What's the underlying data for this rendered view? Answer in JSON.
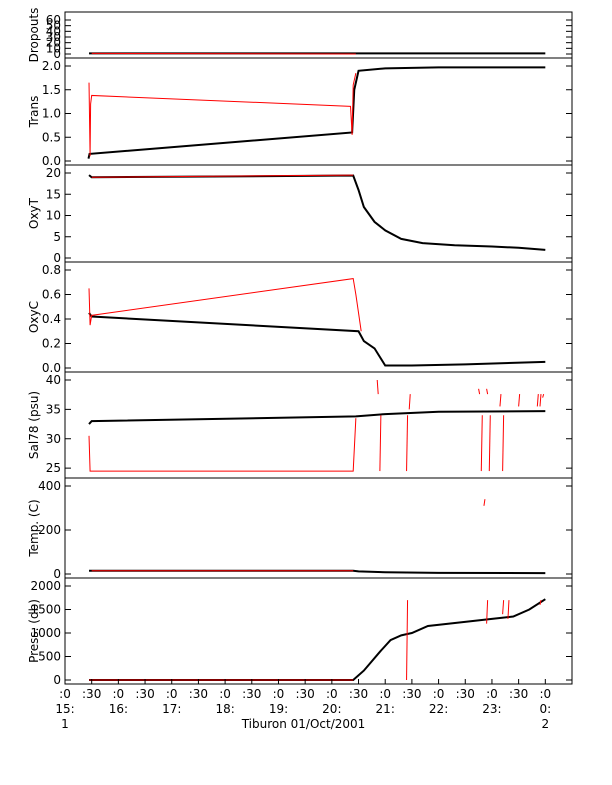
{
  "chart_data": {
    "type": "line",
    "title": "",
    "xlabel": "Tiburon 01/Oct/2001",
    "x_domain_hours": [
      15.0,
      24.5
    ],
    "x_tick_labels": [
      ":0",
      ":30",
      ":0",
      ":30",
      ":0",
      ":30",
      ":0",
      ":30",
      ":0",
      ":30",
      ":0",
      ":30",
      ":0",
      ":30",
      ":0",
      ":30",
      ":0",
      ":30",
      ":0"
    ],
    "x_tick_hours": [
      "15:",
      "16:",
      "17:",
      "18:",
      "19:",
      "20:",
      "21:",
      "22:",
      "23:",
      "0:"
    ],
    "x_tick_days": [
      "1",
      "2"
    ],
    "colors": {
      "qc": "#ff0000",
      "data": "#000000",
      "axis": "#000000"
    },
    "panels": [
      {
        "ylabel": "Dropouts",
        "ylim": [
          0,
          60
        ],
        "yticks": [
          "60",
          "50",
          "40",
          "30",
          "20",
          "10",
          "0"
        ],
        "ytick_values": [
          60,
          50,
          40,
          30,
          20,
          10,
          0
        ],
        "red": [
          [
            15.5,
            1
          ],
          [
            20.45,
            0
          ]
        ],
        "black": [
          [
            15.45,
            1
          ],
          [
            15.5,
            1
          ],
          [
            20.45,
            1
          ],
          [
            24.0,
            1
          ]
        ]
      },
      {
        "ylabel": "Trans",
        "ylim": [
          0,
          2
        ],
        "yticks": [
          "2.0",
          "1.5",
          "1.0",
          "0.5",
          "0.0"
        ],
        "ytick_values": [
          2.0,
          1.5,
          1.0,
          0.5,
          0.0
        ],
        "red": [
          [
            15.45,
            1.65
          ],
          [
            15.47,
            0.1
          ],
          [
            15.48,
            1.2
          ],
          [
            15.5,
            1.38
          ],
          [
            20.35,
            1.15
          ],
          [
            20.38,
            0.55
          ],
          [
            20.4,
            1.6
          ],
          [
            20.45,
            1.85
          ]
        ],
        "black": [
          [
            15.44,
            0.05
          ],
          [
            15.46,
            0.15
          ],
          [
            20.38,
            0.6
          ],
          [
            20.42,
            1.5
          ],
          [
            20.5,
            1.9
          ],
          [
            21.0,
            1.95
          ],
          [
            22.0,
            1.97
          ],
          [
            24.0,
            1.97
          ]
        ]
      },
      {
        "ylabel": "OxyT",
        "ylim": [
          0,
          20
        ],
        "yticks": [
          "20",
          "15",
          "10",
          "5",
          "0"
        ],
        "ytick_values": [
          20,
          15,
          10,
          5,
          0
        ],
        "red": [
          [
            15.5,
            19.0
          ],
          [
            20.4,
            19.5
          ]
        ],
        "black": [
          [
            15.45,
            19.5
          ],
          [
            15.5,
            19.0
          ],
          [
            20.4,
            19.4
          ],
          [
            20.5,
            16.0
          ],
          [
            20.6,
            12.0
          ],
          [
            20.8,
            8.5
          ],
          [
            21.0,
            6.5
          ],
          [
            21.3,
            4.5
          ],
          [
            21.7,
            3.5
          ],
          [
            22.3,
            3.0
          ],
          [
            23.0,
            2.7
          ],
          [
            23.5,
            2.4
          ],
          [
            24.0,
            1.9
          ]
        ]
      },
      {
        "ylabel": "OxyC",
        "ylim": [
          0,
          0.8
        ],
        "yticks": [
          "0.8",
          "0.6",
          "0.4",
          "0.2",
          "0.0"
        ],
        "ytick_values": [
          0.8,
          0.6,
          0.4,
          0.2,
          0.0
        ],
        "red": [
          [
            15.45,
            0.65
          ],
          [
            15.47,
            0.35
          ],
          [
            15.5,
            0.43
          ],
          [
            20.4,
            0.73
          ],
          [
            20.45,
            0.6
          ],
          [
            20.5,
            0.45
          ],
          [
            20.55,
            0.3
          ]
        ],
        "black": [
          [
            15.45,
            0.45
          ],
          [
            15.5,
            0.42
          ],
          [
            20.5,
            0.3
          ],
          [
            20.6,
            0.22
          ],
          [
            20.8,
            0.16
          ],
          [
            21.0,
            0.02
          ],
          [
            21.5,
            0.02
          ],
          [
            22.5,
            0.03
          ],
          [
            24.0,
            0.05
          ]
        ]
      },
      {
        "ylabel": "Sal78 (psu)",
        "ylim": [
          24,
          40
        ],
        "yticks": [
          "40",
          "35",
          "30",
          "25"
        ],
        "ytick_values": [
          40,
          35,
          30,
          25
        ],
        "red": [
          [
            15.45,
            30.5
          ],
          [
            15.47,
            24.5
          ],
          [
            20.4,
            24.5
          ],
          [
            20.45,
            33.5
          ]
        ],
        "black": [
          [
            15.45,
            32.5
          ],
          [
            15.5,
            33.0
          ],
          [
            20.45,
            33.8
          ],
          [
            21.0,
            34.2
          ],
          [
            22.0,
            34.6
          ],
          [
            24.0,
            34.7
          ]
        ],
        "spikes": [
          [
            20.85,
            40
          ],
          [
            20.9,
            24.5
          ],
          [
            21.4,
            24.5
          ],
          [
            21.45,
            35.0
          ],
          [
            22.75,
            38.5
          ],
          [
            22.8,
            24.5
          ],
          [
            22.9,
            38.5
          ],
          [
            22.95,
            24.5
          ],
          [
            23.15,
            35.5
          ],
          [
            23.2,
            24.5
          ],
          [
            23.5,
            35.5
          ],
          [
            23.85,
            35.5
          ],
          [
            23.9,
            35.5
          ],
          [
            23.95,
            37.0
          ]
        ]
      },
      {
        "ylabel": "Temp. (C)",
        "ylim": [
          0,
          400
        ],
        "yticks": [
          "400",
          "200",
          "0"
        ],
        "ytick_values": [
          400,
          200,
          0
        ],
        "red": [
          [
            15.5,
            15
          ],
          [
            20.4,
            15
          ]
        ],
        "black": [
          [
            15.45,
            15
          ],
          [
            20.4,
            15
          ],
          [
            20.5,
            12
          ],
          [
            21.0,
            8
          ],
          [
            22.0,
            5
          ],
          [
            24.0,
            4
          ]
        ],
        "spikes": [
          [
            22.85,
            310
          ]
        ]
      },
      {
        "ylabel": "Press. (db)",
        "ylim": [
          0,
          2000
        ],
        "yticks": [
          "2000",
          "1500",
          "1000",
          "500",
          "0"
        ],
        "ytick_values": [
          2000,
          1500,
          1000,
          500,
          0
        ],
        "red": [
          [
            15.45,
            0
          ],
          [
            20.4,
            0
          ]
        ],
        "black": [
          [
            15.45,
            0
          ],
          [
            20.4,
            0
          ],
          [
            20.6,
            200
          ],
          [
            20.9,
            600
          ],
          [
            21.1,
            850
          ],
          [
            21.3,
            950
          ],
          [
            21.5,
            1000
          ],
          [
            21.8,
            1150
          ],
          [
            22.2,
            1200
          ],
          [
            22.6,
            1250
          ],
          [
            23.0,
            1300
          ],
          [
            23.4,
            1350
          ],
          [
            23.7,
            1500
          ],
          [
            24.0,
            1720
          ]
        ],
        "spikes": [
          [
            21.4,
            0
          ],
          [
            22.9,
            1200
          ],
          [
            23.2,
            1400
          ],
          [
            23.3,
            1300
          ],
          [
            23.9,
            1600
          ]
        ]
      }
    ]
  }
}
